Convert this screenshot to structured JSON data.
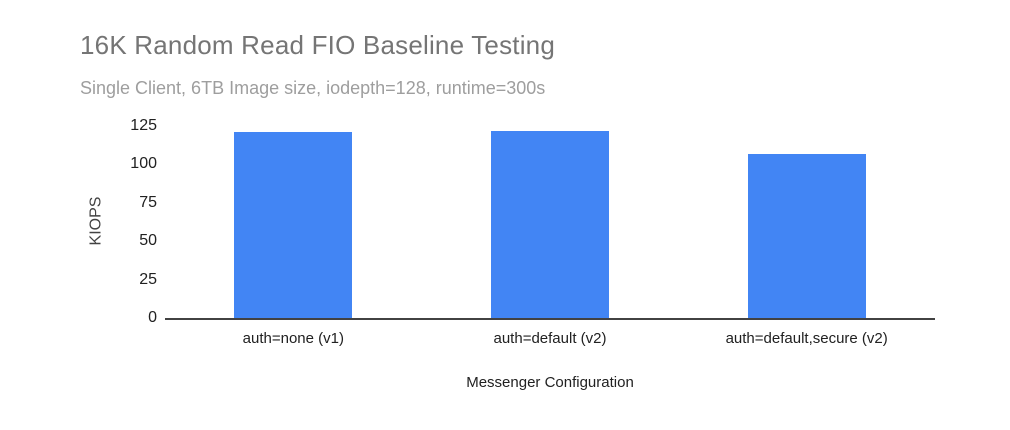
{
  "title": "16K Random Read FIO Baseline Testing",
  "subtitle": "Single Client, 6TB Image size, iodepth=128, runtime=300s",
  "colors": {
    "bar": "#4285f4",
    "title_text": "#757575",
    "subtitle_text": "#9e9e9e",
    "axis_line": "#424242"
  },
  "chart_data": {
    "type": "bar",
    "title": "16K Random Read FIO Baseline Testing",
    "subtitle": "Single Client, 6TB Image size, iodepth=128, runtime=300s",
    "categories": [
      "auth=none (v1)",
      "auth=default (v2)",
      "auth=default,secure (v2)"
    ],
    "values": [
      121,
      122,
      107
    ],
    "xlabel": "Messenger Configuration",
    "ylabel": "KIOPS",
    "ylim": [
      0,
      125
    ],
    "yticks": [
      0,
      25,
      50,
      75,
      100,
      125
    ],
    "grid": false,
    "legend": "none",
    "bar_color": "#4285f4"
  }
}
